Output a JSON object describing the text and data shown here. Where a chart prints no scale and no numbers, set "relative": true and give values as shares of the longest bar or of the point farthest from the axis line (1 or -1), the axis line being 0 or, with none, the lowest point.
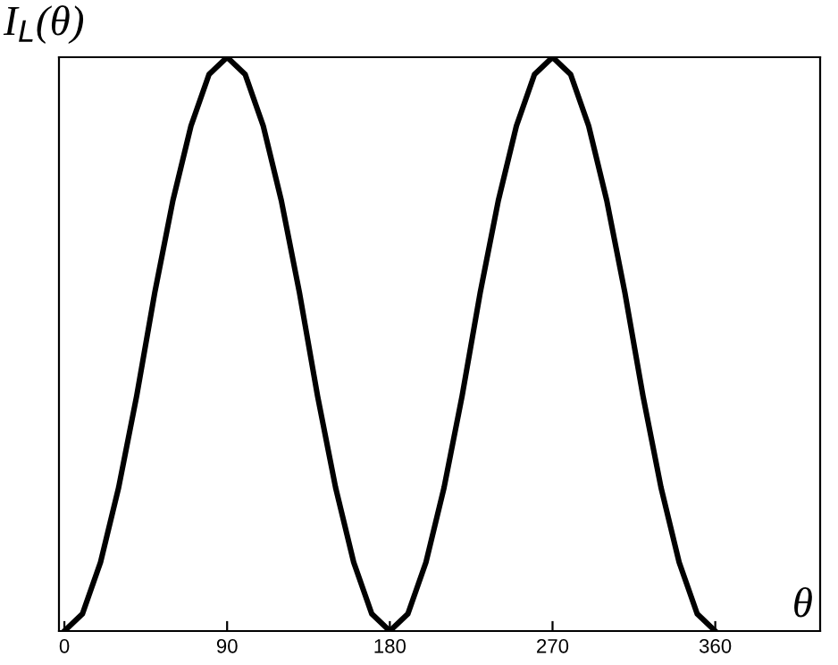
{
  "chart_data": {
    "type": "line",
    "relative": true,
    "xlabel": "θ",
    "ylabel": "I$_{L}$(θ)",
    "x": [
      0,
      10,
      20,
      30,
      40,
      50,
      60,
      70,
      80,
      90,
      100,
      110,
      120,
      130,
      140,
      150,
      160,
      170,
      180,
      190,
      200,
      210,
      220,
      230,
      240,
      250,
      260,
      270,
      280,
      290,
      300,
      310,
      320,
      330,
      340,
      350,
      360
    ],
    "series": [
      {
        "color": "#000000",
        "values": [
          0,
          0.03,
          0.12,
          0.25,
          0.41,
          0.59,
          0.75,
          0.88,
          0.97,
          1,
          0.97,
          0.88,
          0.75,
          0.59,
          0.41,
          0.25,
          0.12,
          0.03,
          0,
          0.03,
          0.12,
          0.25,
          0.41,
          0.59,
          0.75,
          0.88,
          0.97,
          1,
          0.97,
          0.88,
          0.75,
          0.59,
          0.41,
          0.25,
          0.12,
          0.03,
          0
        ]
      }
    ],
    "xlim": [
      -3,
      418
    ],
    "xticks": [
      0,
      90,
      180,
      270,
      360
    ],
    "grid": false,
    "legend": false,
    "marker": "none",
    "line_style": "solid"
  }
}
